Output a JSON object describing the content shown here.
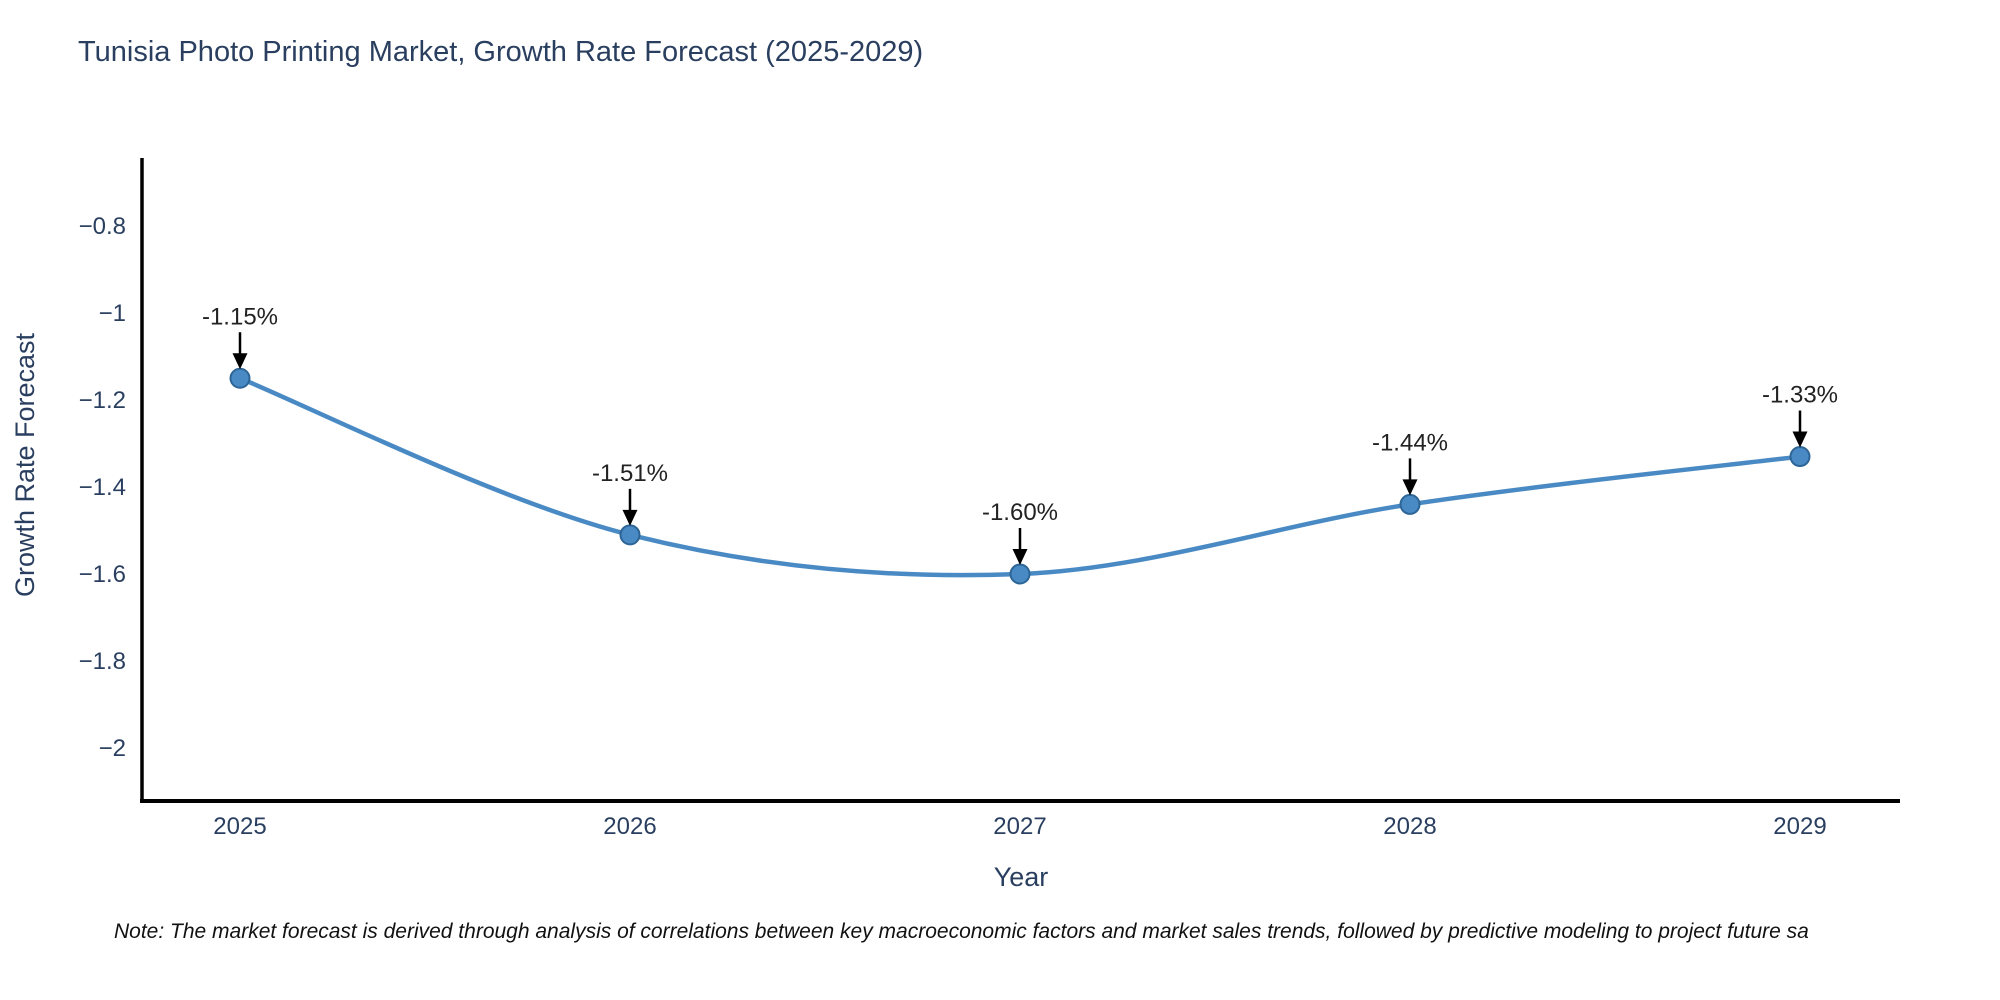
{
  "chart_data": {
    "type": "line",
    "line_shape": "spline",
    "markers": true,
    "grid": false,
    "legend_position": "none",
    "title": "Tunisia Photo Printing Market, Growth Rate Forecast (2025-2029)",
    "xlabel": "Year",
    "ylabel": "Growth Rate Forecast",
    "note": "Note: The market forecast is derived through analysis of correlations between key macroeconomic factors and market sales trends, followed by predictive modeling to project future sa",
    "categories": [
      2025,
      2026,
      2027,
      2028,
      2029
    ],
    "values": [
      -1.15,
      -1.51,
      -1.6,
      -1.44,
      -1.33
    ],
    "data_labels": [
      "-1.15%",
      "-1.51%",
      "-1.60%",
      "-1.44%",
      "-1.33%"
    ],
    "x_tick_labels": [
      "2025",
      "2026",
      "2027",
      "2028",
      "2029"
    ],
    "y_tick_labels": [
      "−0.8",
      "−1",
      "−1.2",
      "−1.4",
      "−1.6",
      "−1.8",
      "−2"
    ],
    "y_tick_values": [
      -0.8,
      -1.0,
      -1.2,
      -1.4,
      -1.6,
      -1.8,
      -2.0
    ],
    "ylim": [
      -2.12,
      -0.65
    ],
    "colors": {
      "line": "#4a8ac4",
      "marker_fill": "#4a8ac4",
      "marker_stroke": "#2d6596",
      "axis_line": "#000000",
      "tick_text": "#2a3f5f",
      "title_text": "#2a3f5f",
      "annotation_text": "#222222",
      "arrow": "#000000",
      "background": "#ffffff"
    }
  }
}
